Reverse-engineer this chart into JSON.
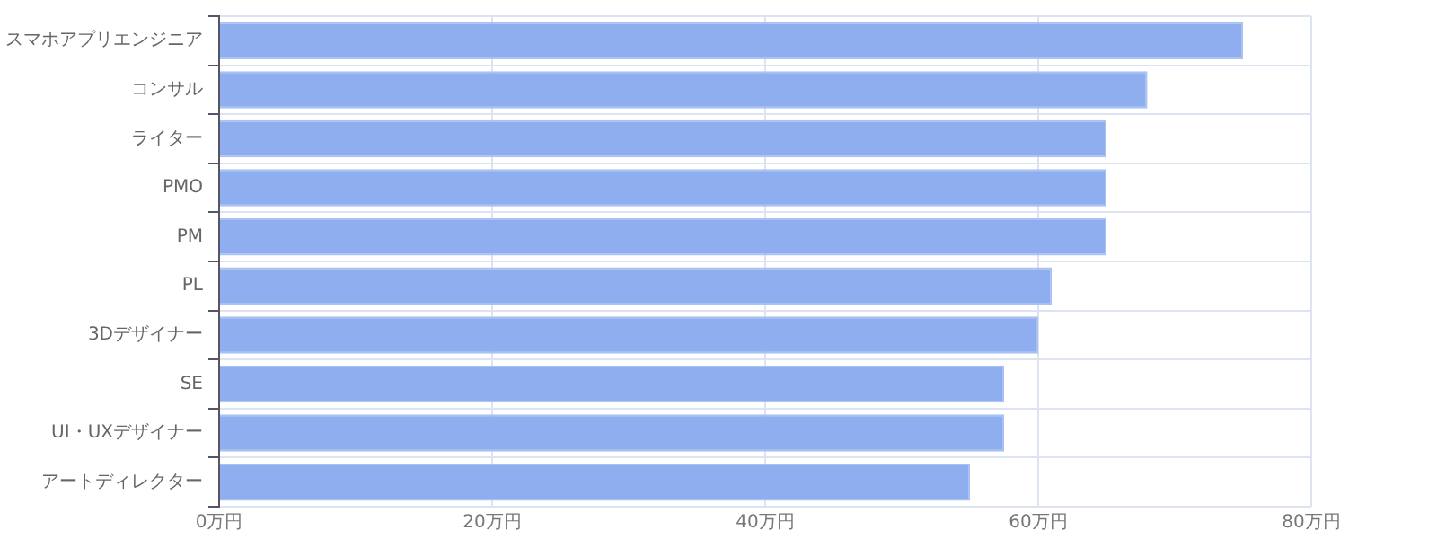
{
  "chart_data": {
    "type": "bar",
    "orientation": "horizontal",
    "categories": [
      "スマホアプリエンジニア",
      "コンサル",
      "ライター",
      "PMO",
      "PM",
      "PL",
      "3Dデザイナー",
      "SE",
      "UI・UXデザイナー",
      "アートディレクター"
    ],
    "values": [
      75,
      68,
      65,
      65,
      65,
      61,
      60,
      57.5,
      57.5,
      55
    ],
    "color": "#8eaeef",
    "xlim": [
      0,
      80
    ],
    "xticks": [
      {
        "value": 0,
        "label": "0万円"
      },
      {
        "value": 20,
        "label": "20万円"
      },
      {
        "value": 40,
        "label": "40万円"
      },
      {
        "value": 60,
        "label": "60万円"
      },
      {
        "value": 80,
        "label": "80万円"
      }
    ],
    "grid": true,
    "legend": false
  }
}
